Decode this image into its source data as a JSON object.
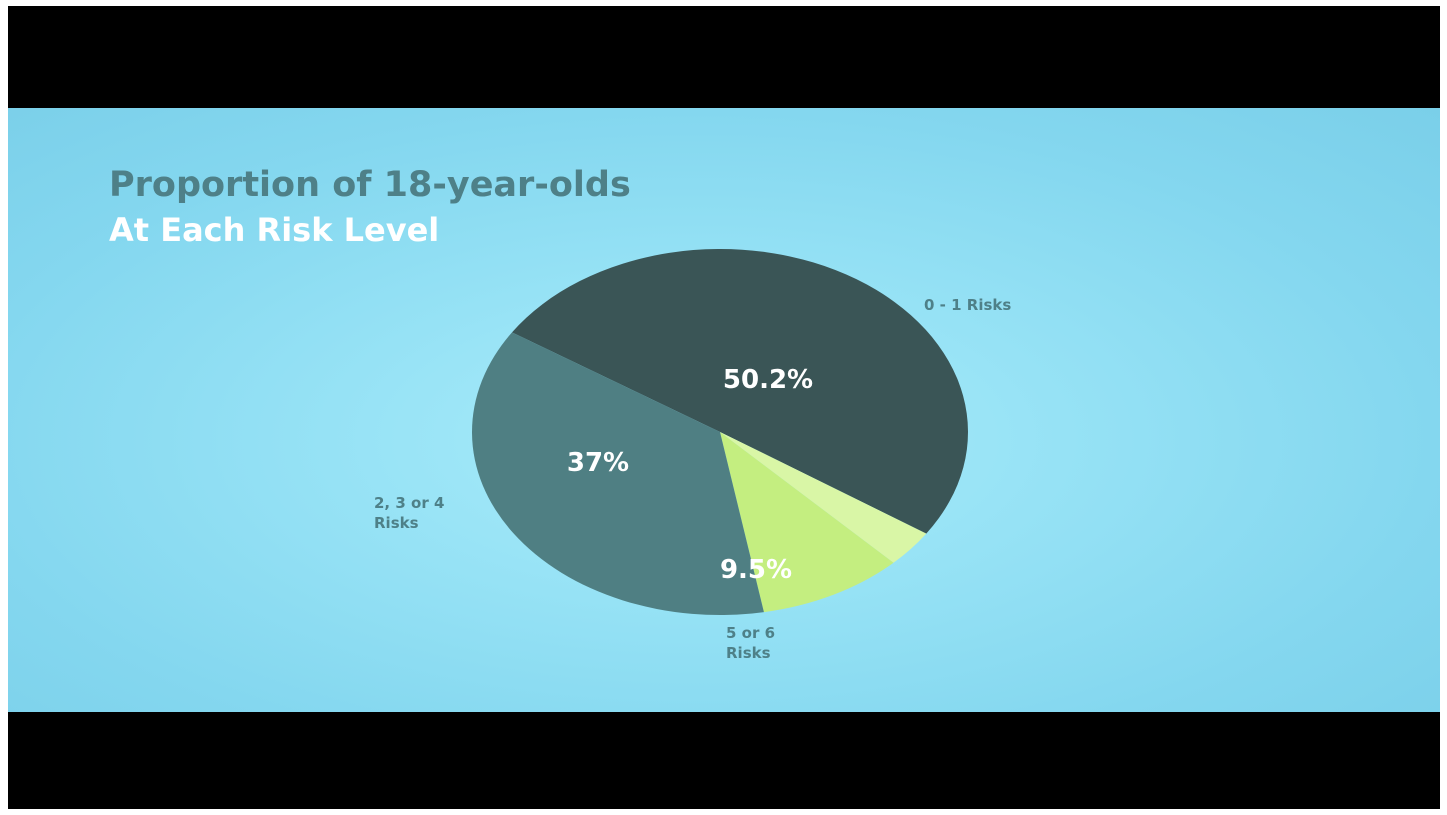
{
  "chart_data": {
    "type": "pie",
    "title": "Proportion of 18-year-olds",
    "subtitle": "At Each Risk Level",
    "slices": [
      {
        "label_lines": [
          "0 - 1 Risks"
        ],
        "value": 50.2,
        "value_label": "50.2%",
        "color": "#3a5556"
      },
      {
        "label_lines": [
          ""
        ],
        "value": 3.3,
        "value_label": "",
        "color": "#d9f6a6"
      },
      {
        "label_lines": [
          "5 or 6",
          "Risks"
        ],
        "value": 9.5,
        "value_label": "9.5%",
        "color": "#c4ee80"
      },
      {
        "label_lines": [
          "2, 3 or 4",
          "Risks"
        ],
        "value": 37,
        "value_label": "37%",
        "color": "#4f7f83"
      }
    ]
  }
}
